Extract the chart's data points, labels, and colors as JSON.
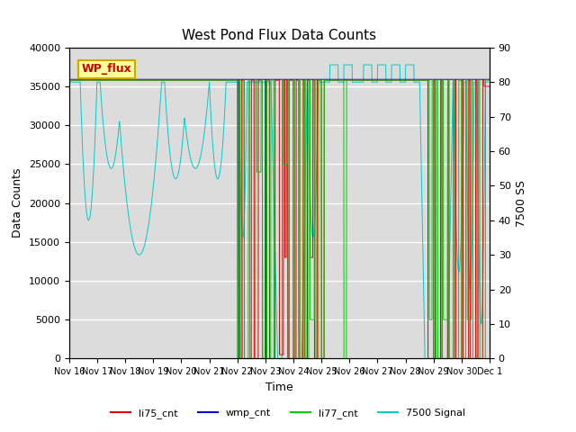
{
  "title": "West Pond Flux Data Counts",
  "xlabel": "Time",
  "ylabel_left": "Data Counts",
  "ylabel_right": "7500 SS",
  "ylim_left": [
    0,
    40000
  ],
  "ylim_right": [
    0,
    90
  ],
  "yticks_left": [
    0,
    5000,
    10000,
    15000,
    20000,
    25000,
    30000,
    35000,
    40000
  ],
  "yticks_right": [
    0,
    10,
    20,
    30,
    40,
    50,
    60,
    70,
    80,
    90
  ],
  "xtick_labels": [
    "Nov 16",
    "Nov 17",
    "Nov 18",
    "Nov 19",
    "Nov 20",
    "Nov 21",
    "Nov 22",
    "Nov 23",
    "Nov 24",
    "Nov 25",
    "Nov 26",
    "Nov 27",
    "Nov 28",
    "Nov 29",
    "Nov 30",
    "Dec 1"
  ],
  "bg_color": "#dcdcdc",
  "fig_color": "#ffffff",
  "legend_box_color": "#ffff99",
  "legend_box_edge": "#ccaa00",
  "legend_box_text": "WP_flux",
  "legend_box_text_color": "#cc0000",
  "colors": {
    "li75_cnt": "#dd0000",
    "wmp_cnt": "#0000cc",
    "li77_cnt": "#00cc00",
    "signal_7500": "#00cccc"
  },
  "main_cnt_value": 35800,
  "n_days": 15
}
